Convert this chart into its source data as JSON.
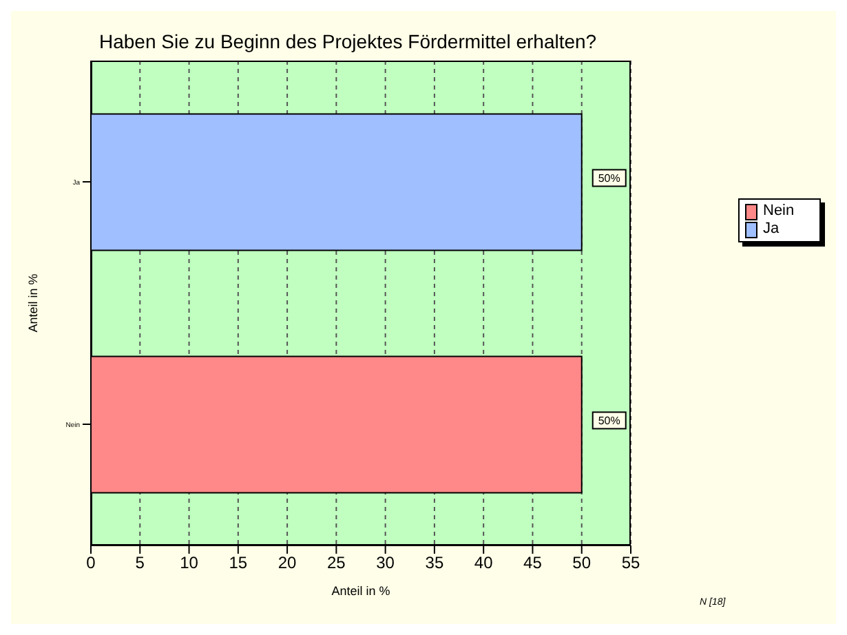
{
  "chart_data": {
    "type": "bar",
    "orientation": "horizontal",
    "stacked": true,
    "title": "Haben Sie zu Beginn des Projektes Fördermittel erhalten?",
    "xlabel": "Anteil in %",
    "ylabel": "Anteil in %",
    "categories": [
      "Ja",
      "Nein"
    ],
    "series": [
      {
        "name": "Nein",
        "color": "#ff8888",
        "values": [
          null,
          50
        ],
        "value_labels": [
          null,
          "50%"
        ]
      },
      {
        "name": "Ja",
        "color": "#a0bfff",
        "values": [
          50,
          null
        ],
        "value_labels": [
          "50%",
          null
        ]
      }
    ],
    "xlim": [
      0,
      55
    ],
    "xticks": [
      0,
      5,
      10,
      15,
      20,
      25,
      30,
      35,
      40,
      45,
      50,
      55
    ],
    "grid": "x",
    "legend": "right",
    "annotations": [
      "N [18]"
    ]
  }
}
